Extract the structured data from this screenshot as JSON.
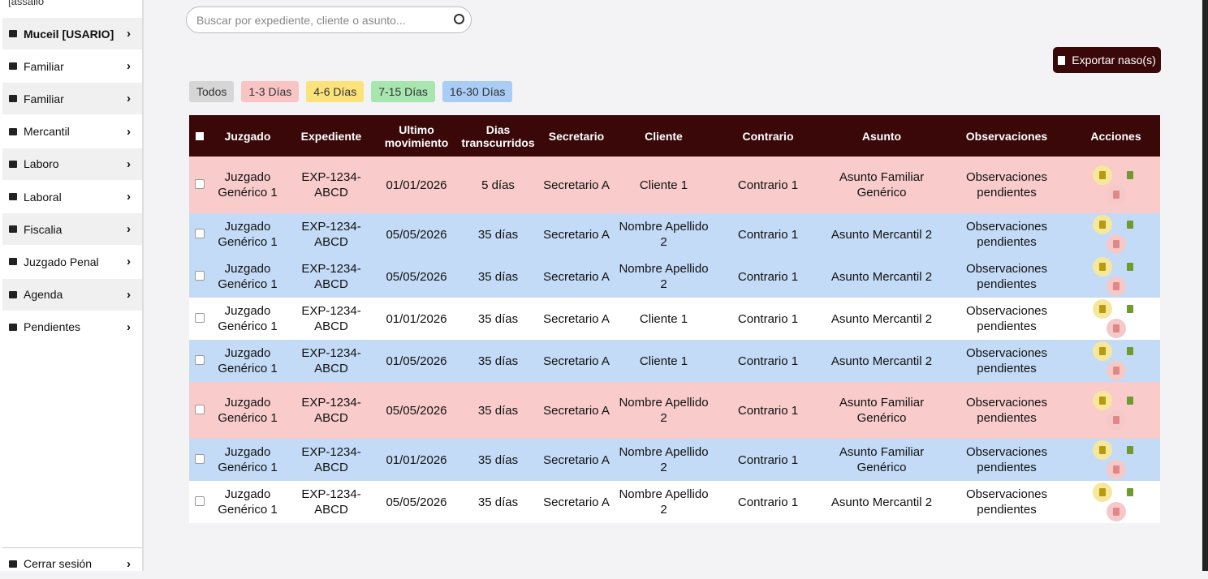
{
  "sidebar": {
    "user_label": "[assaiio",
    "items": [
      "Muceil [USARIO]",
      "Familiar",
      "Familiar",
      "Mercantil",
      "Laboro",
      "Laboral",
      "Fiscalia",
      "Juzgado Penal",
      "Agenda",
      "Pendientes"
    ],
    "logout": "Cerrar sesión"
  },
  "search": {
    "placeholder": "Buscar por expediente, cliente o asunto..."
  },
  "export_button": "Exportar naso(s)",
  "filters": [
    {
      "label": "Todos",
      "color": "#d6d6d6"
    },
    {
      "label": "1-3 Días",
      "color": "#f8c4c4"
    },
    {
      "label": "4-6 Días",
      "color": "#fbe27a"
    },
    {
      "label": "7-15 Días",
      "color": "#a8e6b0"
    },
    {
      "label": "16-30 Días",
      "color": "#a9cdf5"
    }
  ],
  "table": {
    "headers": [
      "Juzgado",
      "Expediente",
      "Ultimo movimiento",
      "Dias transcurridos",
      "Secretario",
      "Cliente",
      "Contrario",
      "Asunto",
      "Observaciones",
      "Acciones"
    ],
    "rows": [
      {
        "color": "#f9cbcb",
        "cells": [
          "Juzgado Genérico 1",
          "EXP-1234-ABCD",
          "01/01/2026",
          "5 días",
          "Secretario A",
          "Cliente 1",
          "Contrario 1",
          "Asunto Familiar Genérico",
          "Observaciones pendientes"
        ]
      },
      {
        "color": "#c3dbf6",
        "cells": [
          "Juzgado Genérico 1",
          "EXP-1234-ABCD",
          "05/05/2026",
          "35 días",
          "Secretario A",
          "Nombre Apellido 2",
          "Contrario 1",
          "Asunto Mercantil 2",
          "Observaciones pendientes"
        ]
      },
      {
        "color": "#c3dbf6",
        "cells": [
          "Juzgado Genérico 1",
          "EXP-1234-ABCD",
          "05/05/2026",
          "35 días",
          "Secretario A",
          "Nombre Apellido 2",
          "Contrario 1",
          "Asunto Mercantil 2",
          "Observaciones pendientes"
        ]
      },
      {
        "color": "#ffffff",
        "cells": [
          "Juzgado Genérico 1",
          "EXP-1234-ABCD",
          "01/01/2026",
          "35 días",
          "Secretario A",
          "Cliente 1",
          "Contrario 1",
          "Asunto Mercantil 2",
          "Observaciones pendientes"
        ]
      },
      {
        "color": "#c3dbf6",
        "cells": [
          "Juzgado Genérico 1",
          "EXP-1234-ABCD",
          "01/05/2026",
          "35 días",
          "Secretario A",
          "Cliente 1",
          "Contrario 1",
          "Asunto Mercantil 2",
          "Observaciones pendientes"
        ]
      },
      {
        "color": "#f9cbcb",
        "cells": [
          "Juzgado Genérico 1",
          "EXP-1234-ABCD",
          "05/05/2026",
          "35 días",
          "Secretario A",
          "Nombre Apellido 2",
          "Contrario 1",
          "Asunto Familiar Genérico",
          "Observaciones pendientes"
        ]
      },
      {
        "color": "#c3dbf6",
        "cells": [
          "Juzgado Genérico 1",
          "EXP-1234-ABCD",
          "01/01/2026",
          "35 días",
          "Secretario A",
          "Nombre Apellido 2",
          "Contrario 1",
          "Asunto Familiar Genérico",
          "Observaciones pendientes"
        ]
      },
      {
        "color": "#ffffff",
        "cells": [
          "Juzgado Genérico 1",
          "EXP-1234-ABCD",
          "05/05/2026",
          "35 días",
          "Secretario A",
          "Nombre Apellido 2",
          "Contrario 1",
          "Asunto Mercantil 2",
          "Observaciones pendientes"
        ]
      }
    ]
  }
}
